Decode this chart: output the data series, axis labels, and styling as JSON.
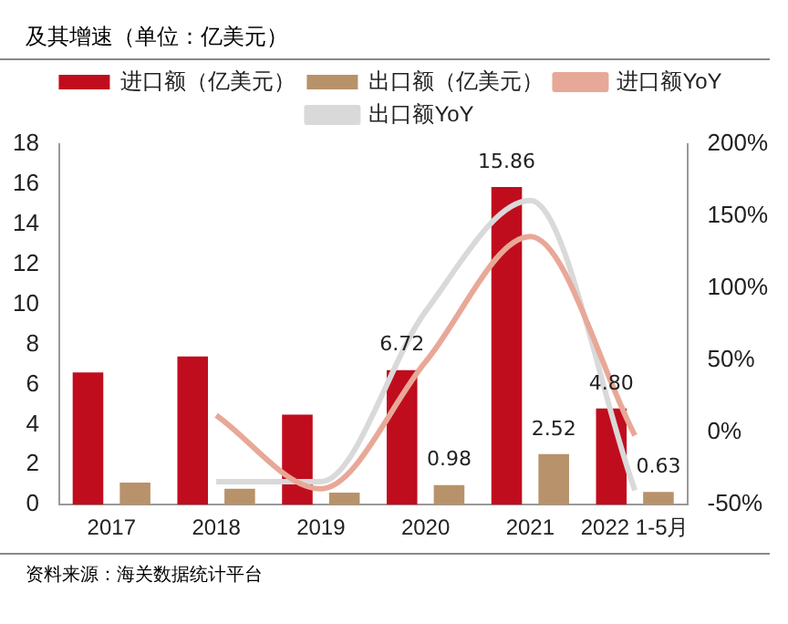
{
  "chart_data": {
    "type": "bar",
    "title": "及其增速（单位：亿美元）",
    "categories": [
      "2017",
      "2018",
      "2019",
      "2020",
      "2021",
      "2022 1-5月"
    ],
    "series": [
      {
        "name": "进口额（亿美元）",
        "color": "#c00d1e",
        "values": [
          6.6,
          7.4,
          4.5,
          6.72,
          15.86,
          4.8
        ],
        "value_labels": [
          null,
          null,
          null,
          "6.72",
          "15.86",
          "4.80"
        ]
      },
      {
        "name": "出口额（亿美元）",
        "color": "#b8926a",
        "values": [
          1.1,
          0.8,
          0.6,
          0.98,
          2.52,
          0.63
        ],
        "value_labels": [
          null,
          null,
          null,
          "0.98",
          "2.52",
          "0.63"
        ]
      },
      {
        "name": "进口额YoY",
        "type": "line",
        "axis": "y2",
        "color": "#e8a898",
        "values": [
          null,
          12,
          -39,
          49,
          136,
          -2
        ]
      },
      {
        "name": "出口额YoY",
        "type": "line",
        "axis": "y2",
        "color": "#d9d9d9",
        "values": [
          null,
          -34,
          -34,
          84,
          161,
          -40
        ]
      }
    ],
    "ylim": [
      0,
      18
    ],
    "yticks": [
      0,
      2,
      4,
      6,
      8,
      10,
      12,
      14,
      16,
      18
    ],
    "y2lim": [
      -50,
      200
    ],
    "y2ticks": [
      {
        "value": -50,
        "label": "-50%"
      },
      {
        "value": 0,
        "label": "0%"
      },
      {
        "value": 50,
        "label": "50%"
      },
      {
        "value": 100,
        "label": "100%"
      },
      {
        "value": 150,
        "label": "150%"
      },
      {
        "value": 200,
        "label": "200%"
      }
    ],
    "grid": false,
    "legend": "top",
    "marker": "none",
    "annotations": [
      "资料来源：海关数据统计平台"
    ]
  }
}
